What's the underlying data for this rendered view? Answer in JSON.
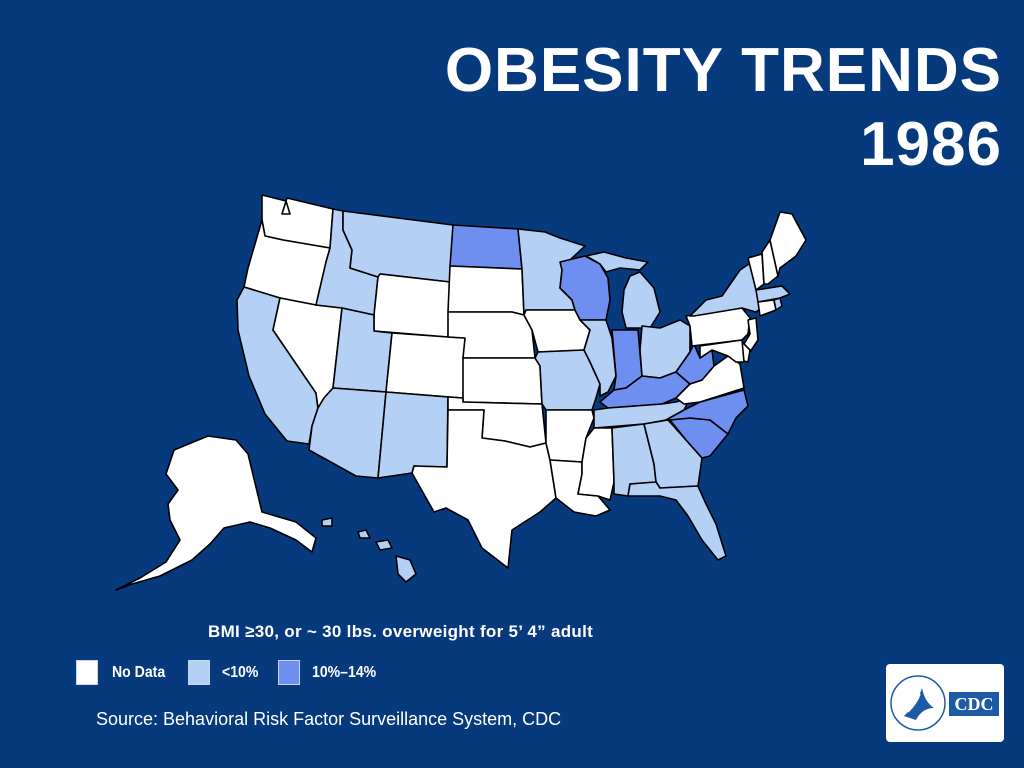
{
  "title": {
    "line1": "OBESITY TRENDS",
    "line2": "1986"
  },
  "subtitle": "BMI ≥30, or ~ 30 lbs. overweight for 5’ 4” adult",
  "legend": [
    {
      "label": "No Data",
      "color": "#ffffff"
    },
    {
      "label": "<10%",
      "color": "#b4d0f5"
    },
    {
      "label": "10%–14%",
      "color": "#6f8ff0"
    }
  ],
  "source": "Source: Behavioral Risk Factor Surveillance System, CDC",
  "logo": {
    "text": "CDC",
    "icon": "hhs-eagle-icon"
  },
  "colors": {
    "background": "#063a7c",
    "no_data": "#ffffff",
    "under_10": "#b4d0f5",
    "from_10_to_14": "#6f8ff0"
  },
  "state_categories": {
    "no_data": [
      "WA",
      "OR",
      "NV",
      "WY",
      "SD",
      "NE",
      "CO",
      "KS",
      "OK",
      "TX",
      "AR",
      "IA",
      "LA",
      "MS",
      "PA",
      "NJ",
      "VT",
      "NH",
      "ME",
      "CT",
      "DE",
      "MD",
      "VA",
      "AK"
    ],
    "under_10": [
      "CA",
      "ID",
      "MT",
      "UT",
      "AZ",
      "NM",
      "MN",
      "MO",
      "IL",
      "MI",
      "OH",
      "NY",
      "MA",
      "RI",
      "TN",
      "AL",
      "GA",
      "FL",
      "HI"
    ],
    "from_10_to_14": [
      "ND",
      "WI",
      "IN",
      "KY",
      "WV",
      "NC",
      "SC"
    ]
  }
}
